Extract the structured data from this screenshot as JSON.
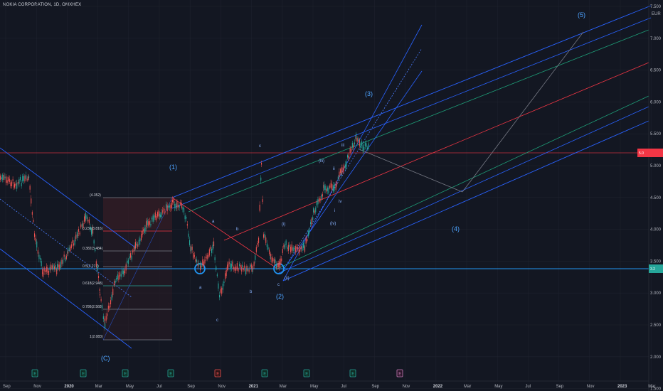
{
  "header": {
    "title": "NOKIA CORPORATION, 1D, OMXHEX"
  },
  "chart_data": {
    "type": "candlestick",
    "currency": "EUR",
    "y_ticks": [
      "7.500",
      "7.000",
      "6.500",
      "6.000",
      "5.500",
      "5.000",
      "4.500",
      "4.000",
      "3.500",
      "3.000",
      "2.500",
      "2.000",
      "1.500"
    ],
    "x_ticks": [
      {
        "label": "Sep",
        "bold": false
      },
      {
        "label": "Nov",
        "bold": false
      },
      {
        "label": "2020",
        "bold": true
      },
      {
        "label": "Mar",
        "bold": false
      },
      {
        "label": "May",
        "bold": false
      },
      {
        "label": "Jul",
        "bold": false
      },
      {
        "label": "Sep",
        "bold": false
      },
      {
        "label": "Nov",
        "bold": false
      },
      {
        "label": "2021",
        "bold": true
      },
      {
        "label": "Mar",
        "bold": false
      },
      {
        "label": "May",
        "bold": false
      },
      {
        "label": "Jul",
        "bold": false
      },
      {
        "label": "Sep",
        "bold": false
      },
      {
        "label": "Nov",
        "bold": false
      },
      {
        "label": "2022",
        "bold": true
      },
      {
        "label": "Mar",
        "bold": false
      },
      {
        "label": "May",
        "bold": false
      },
      {
        "label": "Jul",
        "bold": false
      },
      {
        "label": "Sep",
        "bold": false
      },
      {
        "label": "Nov",
        "bold": false
      },
      {
        "label": "2023",
        "bold": true
      },
      {
        "label": "Mar",
        "bold": false
      }
    ],
    "price_labels": {
      "last": "5.0",
      "support": "3.2"
    },
    "fib_levels": [
      {
        "label": "(4.352)"
      },
      {
        "label": "0.236(3.816)"
      },
      {
        "label": "0.382(3.484)"
      },
      {
        "label": "0.5(3.217)"
      },
      {
        "label": "0.618(2.948)"
      },
      {
        "label": "0.786(2.568)"
      },
      {
        "label": "1(2.083)"
      }
    ],
    "wave_labels": [
      "(1)",
      "(2)",
      "(3)",
      "(4)",
      "(5)",
      "(C)"
    ],
    "sub_labels": [
      "a",
      "b",
      "c",
      "c",
      "b",
      "a",
      "c",
      "(i)",
      "(ii)",
      "(iii)",
      "(iv)",
      "ii",
      "iii",
      "iv",
      "i"
    ],
    "event_markers": [
      "E",
      "E",
      "E",
      "E",
      "E",
      "E",
      "E",
      "E",
      "E",
      "E"
    ],
    "colors": {
      "background": "#131722",
      "bull": "#26a69a",
      "bear": "#ef5350",
      "fork_blue": "#2962ff",
      "fork_green": "#1e9e78",
      "median_red": "#f23645",
      "fib_red": "#f23645",
      "fib_gray": "#787b86",
      "fib_teal": "#26a69a"
    }
  }
}
